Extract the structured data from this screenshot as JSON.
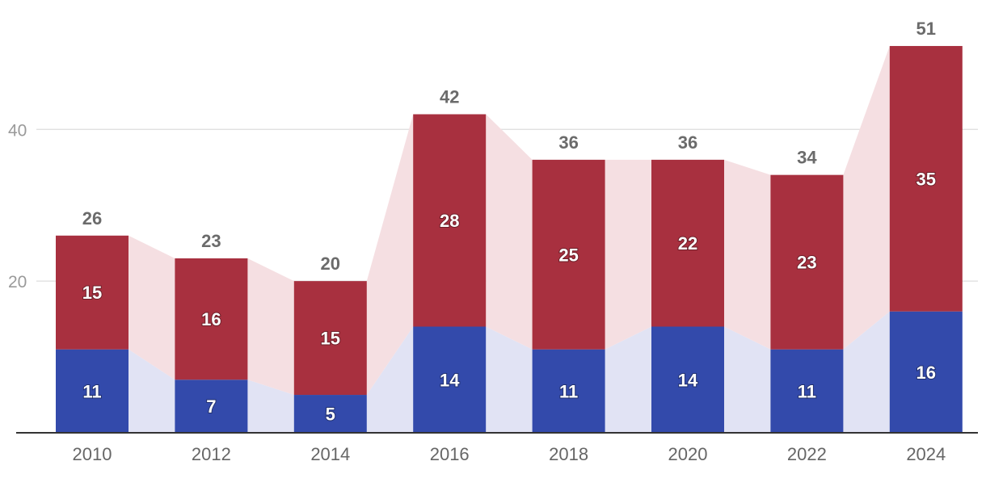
{
  "chart_data": {
    "type": "bar",
    "stacked": true,
    "categories": [
      "2010",
      "2012",
      "2014",
      "2016",
      "2018",
      "2020",
      "2022",
      "2024"
    ],
    "series": [
      {
        "values": [
          11,
          7,
          5,
          14,
          11,
          14,
          11,
          16
        ],
        "color": "#334aab",
        "band_color": "#e1e3f4"
      },
      {
        "values": [
          15,
          16,
          15,
          28,
          25,
          22,
          23,
          35
        ],
        "color": "#a8303f",
        "band_color": "#f5dfe2"
      }
    ],
    "totals": [
      26,
      23,
      20,
      42,
      36,
      36,
      34,
      51
    ],
    "ylim": [
      0,
      56
    ],
    "y_ticks": [
      20,
      40
    ],
    "grid": true,
    "gridline_color": "#dddddd",
    "axis_color": "#333333"
  }
}
